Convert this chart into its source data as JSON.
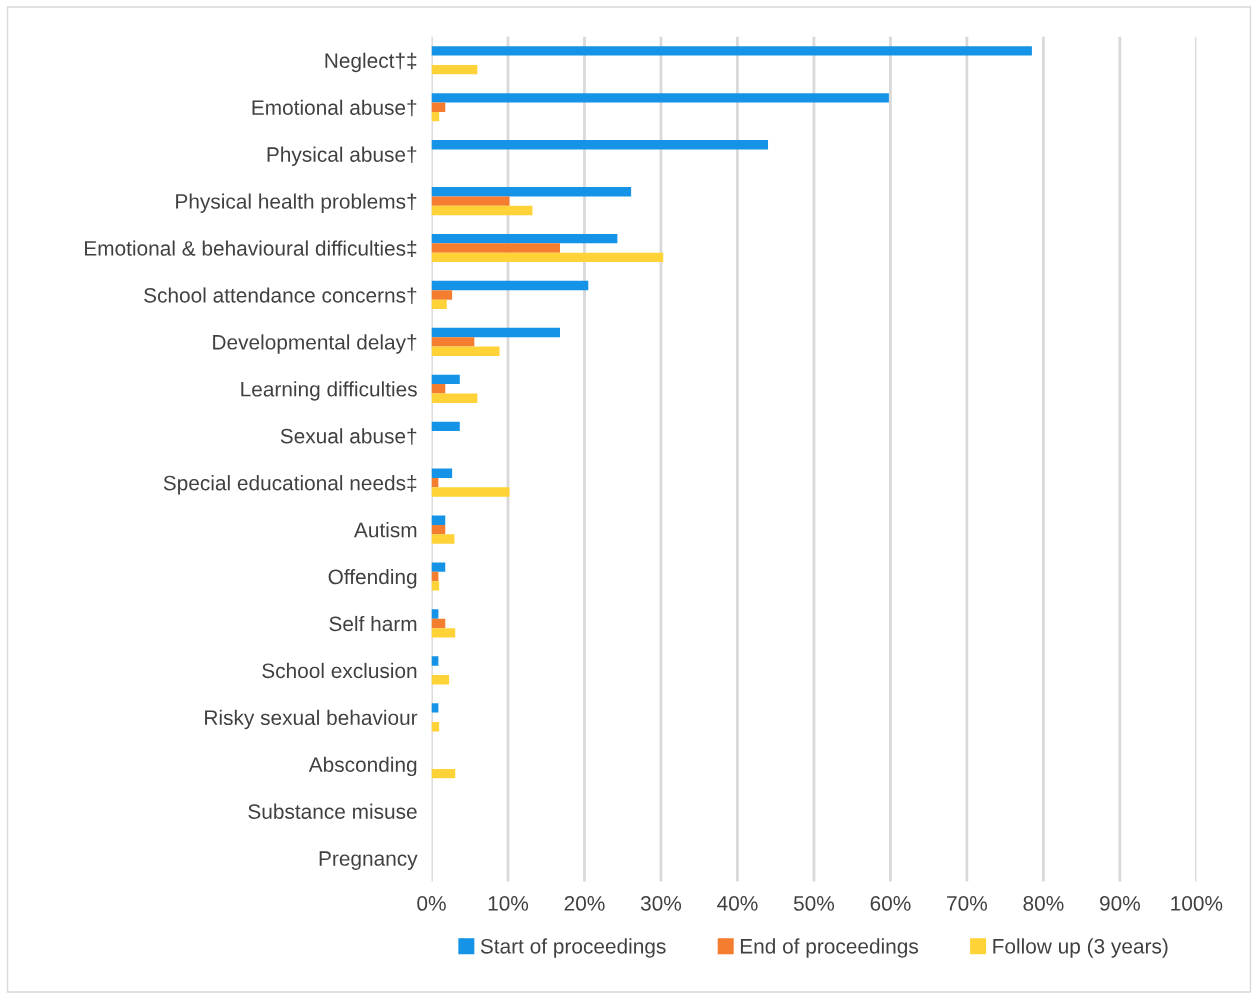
{
  "chart_data": {
    "type": "bar",
    "orientation": "horizontal",
    "categories": [
      "Neglect†‡",
      "Emotional abuse†",
      "Physical abuse†",
      "Physical health problems†",
      "Emotional & behavioural difficulties‡",
      "School attendance concerns†",
      "Developmental delay†",
      "Learning difficulties",
      "Sexual abuse†",
      "Special educational needs‡",
      "Autism",
      "Offending",
      "Self harm",
      "School exclusion",
      "Risky sexual behaviour",
      "Absconding",
      "Substance misuse",
      "Pregnancy"
    ],
    "series": [
      {
        "name": "Start of proceedings",
        "color": "#1593e6",
        "values": [
          78.5,
          59.8,
          44.0,
          26.1,
          24.3,
          20.5,
          16.8,
          3.7,
          3.7,
          2.7,
          1.8,
          1.8,
          0.9,
          0.9,
          0.9,
          0,
          0,
          0
        ]
      },
      {
        "name": "End of proceedings",
        "color": "#f47d2f",
        "values": [
          0,
          1.8,
          0,
          10.2,
          16.8,
          2.7,
          5.6,
          1.8,
          0,
          0.9,
          1.8,
          0.9,
          1.8,
          0,
          0,
          0,
          0,
          0
        ]
      },
      {
        "name": "Follow up (3 years)",
        "color": "#ffd237",
        "values": [
          6.0,
          1.0,
          0,
          13.2,
          30.3,
          2.0,
          8.9,
          6.0,
          0,
          10.2,
          3.0,
          1.0,
          3.1,
          2.3,
          1.0,
          3.1,
          0,
          0
        ]
      }
    ],
    "xlim": [
      0,
      100
    ],
    "xticks": [
      {
        "value": 0,
        "label": "0%"
      },
      {
        "value": 10,
        "label": "10%"
      },
      {
        "value": 20,
        "label": "20%"
      },
      {
        "value": 30,
        "label": "30%"
      },
      {
        "value": 40,
        "label": "40%"
      },
      {
        "value": 50,
        "label": "50%"
      },
      {
        "value": 60,
        "label": "60%"
      },
      {
        "value": 70,
        "label": "70%"
      },
      {
        "value": 80,
        "label": "80%"
      },
      {
        "value": 90,
        "label": "90%"
      },
      {
        "value": 100,
        "label": "100%"
      }
    ],
    "grid": "x",
    "legend": "bottom"
  }
}
